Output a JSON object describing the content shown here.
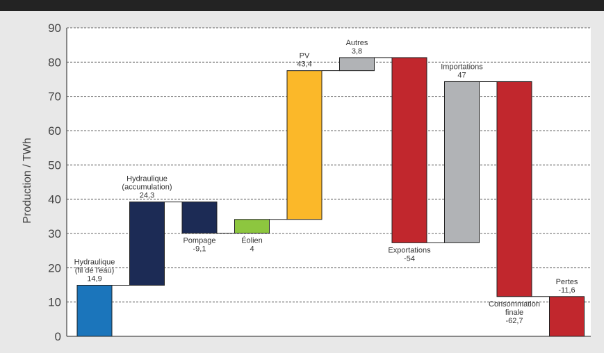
{
  "chart_data": {
    "type": "waterfall",
    "ylabel": "Production / TWh",
    "ylim": [
      0,
      90
    ],
    "yticks": [
      "0",
      "10",
      "20",
      "30",
      "40",
      "50",
      "60",
      "70",
      "80",
      "90"
    ],
    "grid": "horizontal-dashed",
    "bars": [
      {
        "label_lines": [
          "Hydraulique",
          "(fil de l'eau)",
          "14,9"
        ],
        "value": 14.9,
        "start": 0,
        "end": 14.9,
        "color": "#1b75bb",
        "label_pos": "above"
      },
      {
        "label_lines": [
          "Hydraulique",
          "(accumulation)",
          "24,3"
        ],
        "value": 24.3,
        "start": 14.9,
        "end": 39.2,
        "color": "#1c2b55",
        "label_pos": "above"
      },
      {
        "label_lines": [
          "Pompage",
          "-9,1"
        ],
        "value": -9.1,
        "start": 39.2,
        "end": 30.1,
        "color": "#1c2b55",
        "label_pos": "below"
      },
      {
        "label_lines": [
          "Éolien",
          "4"
        ],
        "value": 4,
        "start": 30.1,
        "end": 34.1,
        "color": "#8dc63f",
        "label_pos": "below"
      },
      {
        "label_lines": [
          "PV",
          "43,4"
        ],
        "value": 43.4,
        "start": 34.1,
        "end": 77.5,
        "color": "#fbb829",
        "label_pos": "above"
      },
      {
        "label_lines": [
          "Autres",
          "3,8"
        ],
        "value": 3.8,
        "start": 77.5,
        "end": 81.3,
        "color": "#b1b3b6",
        "label_pos": "above"
      },
      {
        "label_lines": [
          "Exportations",
          "-54"
        ],
        "value": -54,
        "start": 81.3,
        "end": 27.3,
        "color": "#c1272d",
        "label_pos": "below"
      },
      {
        "label_lines": [
          "Importations",
          "47"
        ],
        "value": 47,
        "start": 27.3,
        "end": 74.3,
        "color": "#b1b3b6",
        "label_pos": "above"
      },
      {
        "label_lines": [
          "Consommation",
          "finale",
          "-62,7"
        ],
        "value": -62.7,
        "start": 74.3,
        "end": 11.6,
        "color": "#c1272d",
        "label_pos": "below"
      },
      {
        "label_lines": [
          "Pertes",
          "-11,6"
        ],
        "value": -11.6,
        "start": 11.6,
        "end": 0,
        "color": "#c1272d",
        "label_pos": "above"
      }
    ]
  }
}
